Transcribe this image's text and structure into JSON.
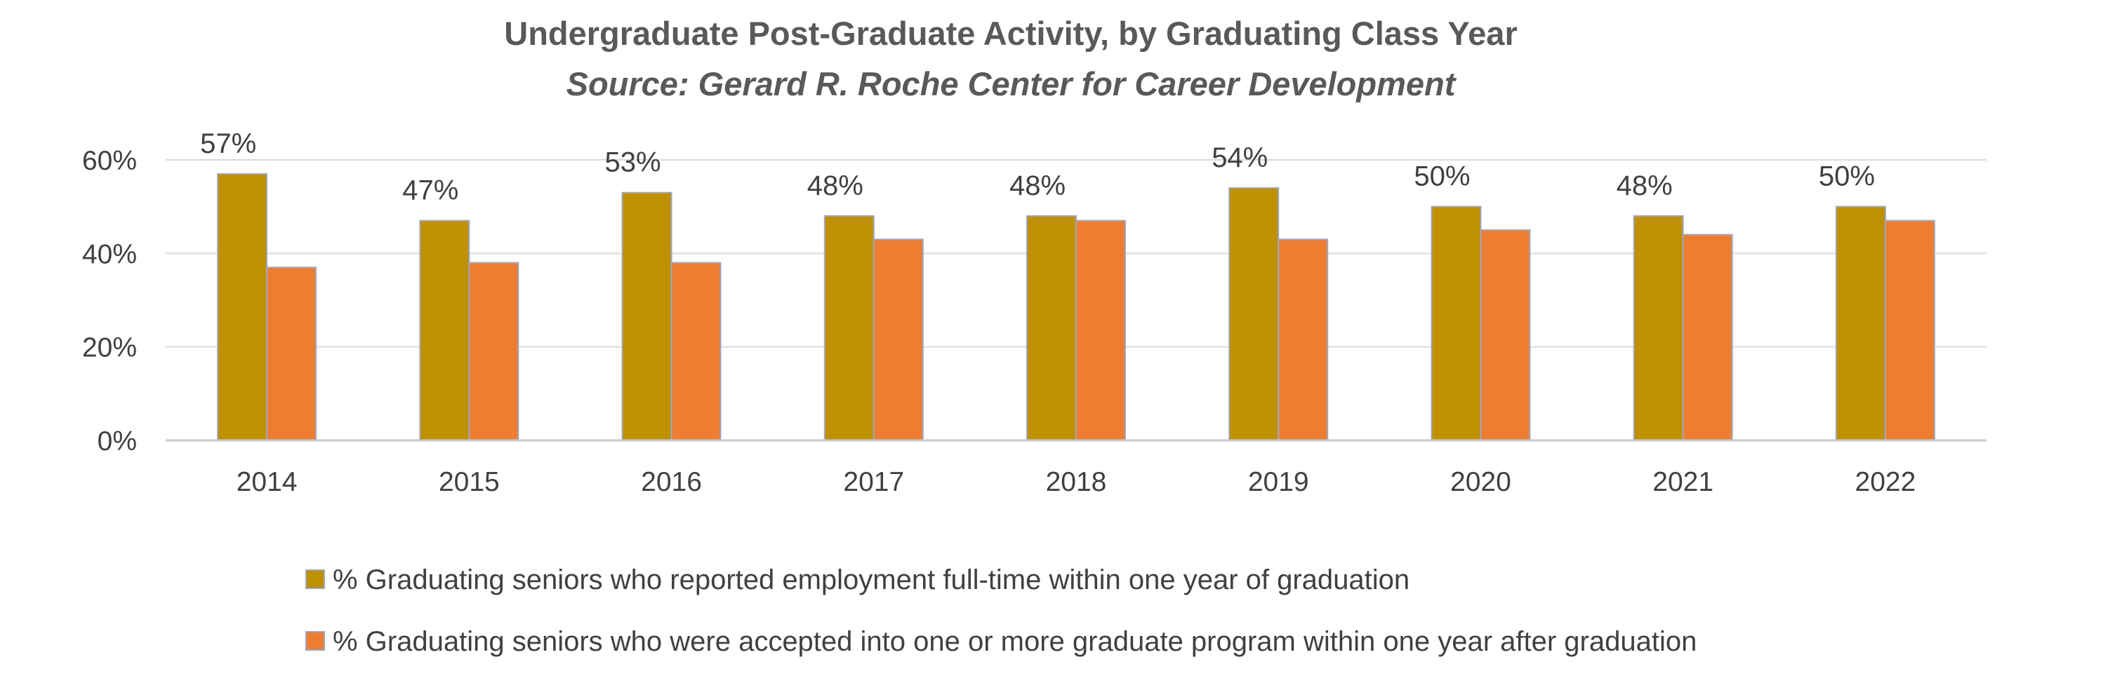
{
  "chart_data": {
    "type": "bar",
    "title": "Undergraduate Post-Graduate Activity, by Graduating Class Year",
    "subtitle": "Source: Gerard R. Roche Center for Career Development",
    "categories": [
      "2014",
      "2015",
      "2016",
      "2017",
      "2018",
      "2019",
      "2020",
      "2021",
      "2022"
    ],
    "series": [
      {
        "name": "% Graduating seniors who reported employment full-time within one year of graduation",
        "values": [
          57,
          47,
          53,
          48,
          48,
          54,
          50,
          48,
          50
        ],
        "labels": [
          "57%",
          "47%",
          "53%",
          "48%",
          "48%",
          "54%",
          "50%",
          "48%",
          "50%"
        ],
        "color": "#bf9000"
      },
      {
        "name": "% Graduating seniors who were accepted into one or more graduate program within one year after graduation",
        "values": [
          37,
          38,
          38,
          43,
          47,
          43,
          45,
          44,
          47
        ],
        "color": "#ed7d31"
      }
    ],
    "yticks": [
      0,
      20,
      40,
      60
    ],
    "ytick_labels": [
      "0%",
      "20%",
      "40%",
      "60%"
    ],
    "ylim": [
      0,
      60
    ],
    "xlabel": "",
    "ylabel": "",
    "grid": true,
    "legend_position": "bottom"
  }
}
